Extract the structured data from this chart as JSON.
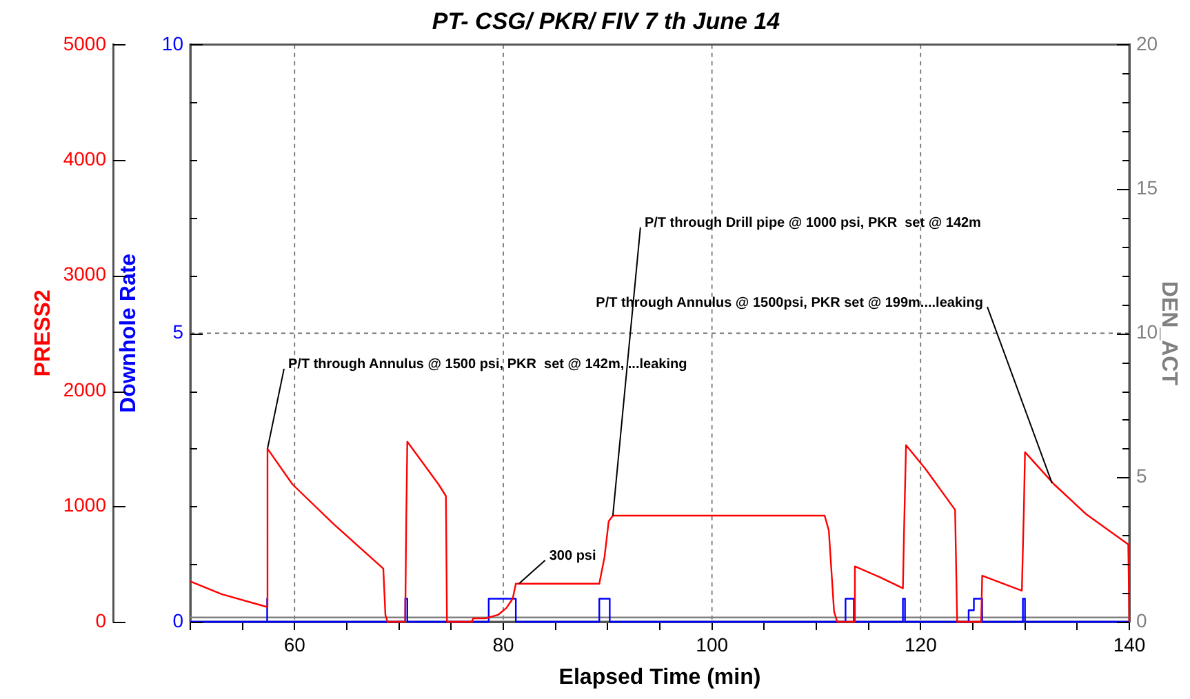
{
  "chart_data": {
    "type": "line",
    "title": "PT- CSG/ PKR/ FIV 7 th June 14",
    "xlabel": "Elapsed Time (min)",
    "ylabel": "PRESS2",
    "y2label": "Downhole Rate",
    "y3label": "DEN_ACT",
    "xlim": [
      50,
      140
    ],
    "xticks": [
      {
        "value": 50,
        "label": null
      },
      {
        "value": 55,
        "label": null
      },
      60,
      {
        "value": 65,
        "label": null
      },
      {
        "value": 70,
        "label": null
      },
      {
        "value": 75,
        "label": null
      },
      80,
      {
        "value": 85,
        "label": null
      },
      {
        "value": 90,
        "label": null
      },
      {
        "value": 95,
        "label": null
      },
      100,
      {
        "value": 105,
        "label": null
      },
      {
        "value": 110,
        "label": null
      },
      {
        "value": 115,
        "label": null
      },
      120,
      {
        "value": 125,
        "label": null
      },
      {
        "value": 130,
        "label": null
      },
      {
        "value": 135,
        "label": null
      },
      140
    ],
    "ylim": [
      0,
      5000
    ],
    "yticks": [
      0,
      1000,
      2000,
      3000,
      4000,
      5000
    ],
    "y2lim": [
      0,
      10
    ],
    "y2ticks": [
      0,
      {
        "value": 1,
        "label": null
      },
      {
        "value": 2,
        "label": null
      },
      {
        "value": 3,
        "label": null
      },
      {
        "value": 4,
        "label": null
      },
      5,
      {
        "value": 6,
        "label": null
      },
      {
        "value": 7,
        "label": null
      },
      {
        "value": 8,
        "label": null
      },
      {
        "value": 9,
        "label": null
      },
      10
    ],
    "y3lim": [
      0,
      20
    ],
    "y3ticks": [
      0,
      {
        "value": 1,
        "label": null
      },
      {
        "value": 2,
        "label": null
      },
      {
        "value": 3,
        "label": null
      },
      {
        "value": 4,
        "label": null
      },
      5,
      {
        "value": 6,
        "label": null
      },
      {
        "value": 7,
        "label": null
      },
      {
        "value": 8,
        "label": null
      },
      {
        "value": 9,
        "label": null
      },
      10,
      {
        "value": 11,
        "label": null
      },
      {
        "value": 12,
        "label": null
      },
      {
        "value": 13,
        "label": null
      },
      {
        "value": 14,
        "label": null
      },
      15,
      {
        "value": 16,
        "label": null
      },
      {
        "value": 17,
        "label": null
      },
      {
        "value": 18,
        "label": null
      },
      {
        "value": 19,
        "label": null
      },
      20
    ],
    "grid": true,
    "legend": false,
    "marker": "none",
    "line_style": "solid",
    "series": [
      {
        "axis": "y",
        "color": "#ff0000",
        "x": [
          50,
          53,
          57.3,
          57.4,
          59.8,
          63.7,
          68.5,
          68.7,
          68.9,
          70.6,
          70.7,
          70.8,
          73.8,
          74.5,
          74.6,
          77,
          77.1,
          78.3,
          79.5,
          80.3,
          80.9,
          81.2,
          89.2,
          89.7,
          90.1,
          90.5,
          110.8,
          111.2,
          111.7,
          112,
          113.6,
          113.7,
          116,
          118.3,
          118.4,
          118.6,
          120.5,
          123.3,
          123.5,
          125.8,
          125.9,
          129.7,
          129.9,
          130,
          132.8,
          135.9,
          139.9,
          140
        ],
        "values": [
          350,
          240,
          130,
          1500,
          1190,
          850,
          460,
          60,
          0,
          0,
          900,
          1560,
          1190,
          1090,
          0,
          0,
          30,
          30,
          60,
          120,
          200,
          330,
          330,
          560,
          870,
          920,
          920,
          790,
          90,
          0,
          0,
          480,
          390,
          290,
          750,
          1530,
          1320,
          970,
          0,
          0,
          400,
          270,
          1000,
          1470,
          1190,
          930,
          670,
          0
        ]
      },
      {
        "axis": "y2",
        "color": "#0000ff",
        "x": [
          50,
          57.3,
          57.3,
          57.4,
          57.4,
          70.6,
          70.6,
          70.8,
          70.8,
          78.6,
          78.6,
          81.2,
          81.2,
          89.2,
          89.2,
          90.2,
          90.2,
          112.8,
          112.8,
          113.6,
          113.6,
          118.3,
          118.3,
          118.5,
          118.5,
          124.6,
          124.6,
          125.1,
          125.1,
          125.9,
          125.9,
          129.8,
          129.8,
          130,
          130,
          140
        ],
        "values": [
          0,
          0,
          0.4,
          0.4,
          0,
          0,
          0.4,
          0.4,
          0,
          0,
          0.4,
          0.4,
          0,
          0,
          0.4,
          0.4,
          0,
          0,
          0.4,
          0.4,
          0,
          0,
          0.4,
          0.4,
          0,
          0,
          0.2,
          0.2,
          0.4,
          0.4,
          0,
          0,
          0.4,
          0.4,
          0,
          0
        ]
      },
      {
        "axis": "y3",
        "color": "#808080",
        "x": [
          50,
          140
        ],
        "values": [
          0.15,
          0.15
        ]
      }
    ],
    "annotations": [
      {
        "text": "P/T through Annulus @ 1500 psi, PKR  set @ 142m, ...leaking",
        "x": 57.4,
        "y": 1500
      },
      {
        "text": "P/T through Drill pipe @ 1000 psi, PKR  set @ 142m",
        "x": 90.5,
        "y": 920
      },
      {
        "text": "P/T through Annulus @ 1500psi, PKR set @ 199m....leaking",
        "x": 132.6,
        "y": 1200
      },
      {
        "text": "300 psi",
        "x": 81.5,
        "y": 330
      }
    ]
  }
}
